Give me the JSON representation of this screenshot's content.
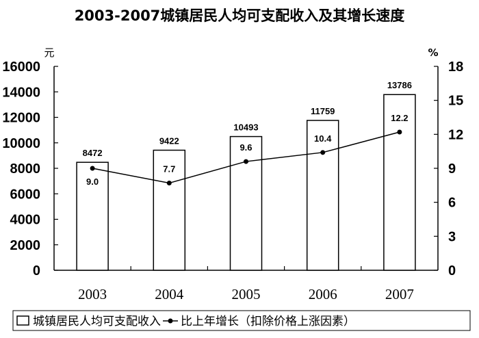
{
  "chart_data": {
    "type": "bar+line",
    "title": "2003-2007城镇居民人均可支配收入及其增长速度",
    "categories": [
      "2003",
      "2004",
      "2005",
      "2006",
      "2007"
    ],
    "series": [
      {
        "name": "城镇居民人均可支配收入",
        "type": "bar",
        "axis": "left",
        "values": [
          8472,
          9422,
          10493,
          11759,
          13786
        ]
      },
      {
        "name": "比上年增长（扣除价格上涨因素）",
        "type": "line",
        "axis": "right",
        "values": [
          9.0,
          7.7,
          9.6,
          10.4,
          12.2
        ]
      }
    ],
    "left_axis": {
      "unit": "元",
      "ylim": [
        0,
        16000
      ],
      "ticks": [
        "0",
        "2000",
        "4000",
        "6000",
        "8000",
        "10000",
        "12000",
        "14000",
        "16000"
      ]
    },
    "right_axis": {
      "unit": "%",
      "ylim": [
        0,
        18
      ],
      "ticks": [
        "0",
        "3",
        "6",
        "9",
        "12",
        "15",
        "18"
      ]
    },
    "grid": false,
    "legend_position": "bottom",
    "colors": {
      "bar_fill": "#ffffff",
      "stroke": "#000000"
    }
  }
}
